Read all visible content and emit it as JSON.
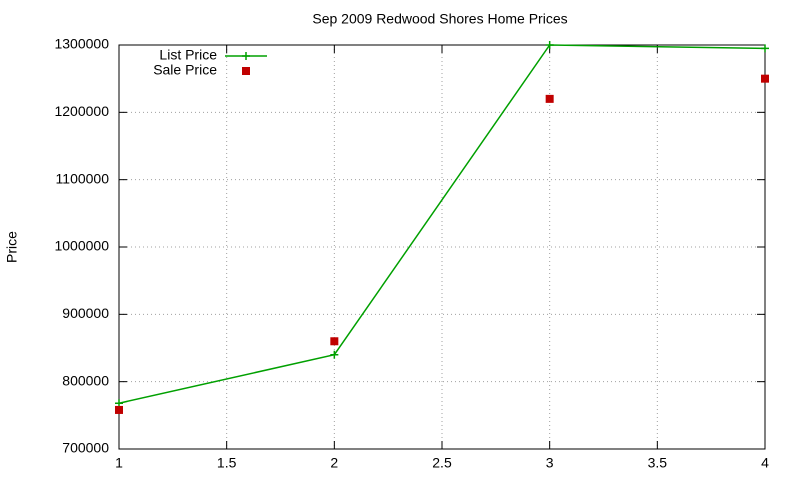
{
  "chart_data": {
    "type": "line",
    "title": "Sep 2009 Redwood Shores Home Prices",
    "y_label": "Price",
    "x": [
      1,
      2,
      3,
      4
    ],
    "series": [
      {
        "name": "List Price",
        "color": "#00a000",
        "marker": "plus",
        "line": true,
        "values": [
          768000,
          840000,
          1300000,
          1295000
        ]
      },
      {
        "name": "Sale Price",
        "color": "#c00000",
        "marker": "square",
        "line": false,
        "values": [
          758000,
          860000,
          1220000,
          1250000
        ]
      }
    ],
    "xlim": [
      1,
      4
    ],
    "xticks": [
      1,
      1.5,
      2,
      2.5,
      3,
      3.5,
      4
    ],
    "ylim": [
      700000,
      1300000
    ],
    "yticks": [
      700000,
      800000,
      900000,
      1000000,
      1100000,
      1200000,
      1300000
    ],
    "grid": true,
    "legend": "top-left"
  }
}
